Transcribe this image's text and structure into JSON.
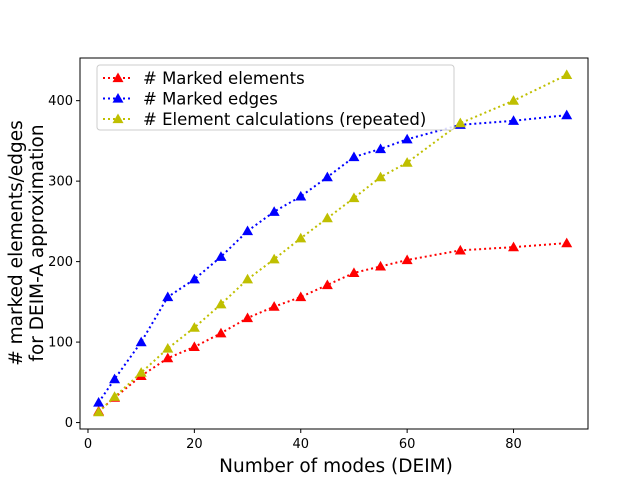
{
  "chart_data": {
    "type": "line",
    "title": "",
    "xlabel": "Number of modes (DEIM)",
    "ylabel_lines": [
      "# marked elements/edges",
      "for DEIM-A approximation"
    ],
    "xlim": [
      -1.5,
      94
    ],
    "ylim": [
      -8,
      453
    ],
    "xticks": [
      0,
      20,
      40,
      60,
      80
    ],
    "yticks": [
      0,
      100,
      200,
      300,
      400
    ],
    "grid": false,
    "legend_position": "top-left",
    "marker": "triangle",
    "line_style": "dotted",
    "series": [
      {
        "name": "# Marked elements",
        "color": "#ff0000",
        "x": [
          2,
          5,
          10,
          15,
          20,
          25,
          30,
          35,
          40,
          45,
          50,
          55,
          60,
          70,
          80,
          90
        ],
        "y": [
          14,
          31,
          58,
          80,
          94,
          111,
          130,
          144,
          156,
          171,
          186,
          194,
          202,
          214,
          218,
          223
        ]
      },
      {
        "name": "# Marked edges",
        "color": "#0000ff",
        "x": [
          2,
          5,
          10,
          15,
          20,
          25,
          30,
          35,
          40,
          45,
          50,
          55,
          60,
          70,
          80,
          90
        ],
        "y": [
          25,
          54,
          100,
          156,
          178,
          206,
          238,
          262,
          281,
          305,
          330,
          340,
          352,
          370,
          375,
          382
        ]
      },
      {
        "name": "# Element calculations (repeated)",
        "color": "#bfbf00",
        "x": [
          2,
          5,
          10,
          15,
          20,
          25,
          30,
          35,
          40,
          45,
          50,
          55,
          60,
          70,
          80,
          90
        ],
        "y": [
          13,
          32,
          62,
          92,
          118,
          147,
          178,
          203,
          229,
          254,
          279,
          305,
          323,
          372,
          400,
          432
        ]
      }
    ]
  }
}
